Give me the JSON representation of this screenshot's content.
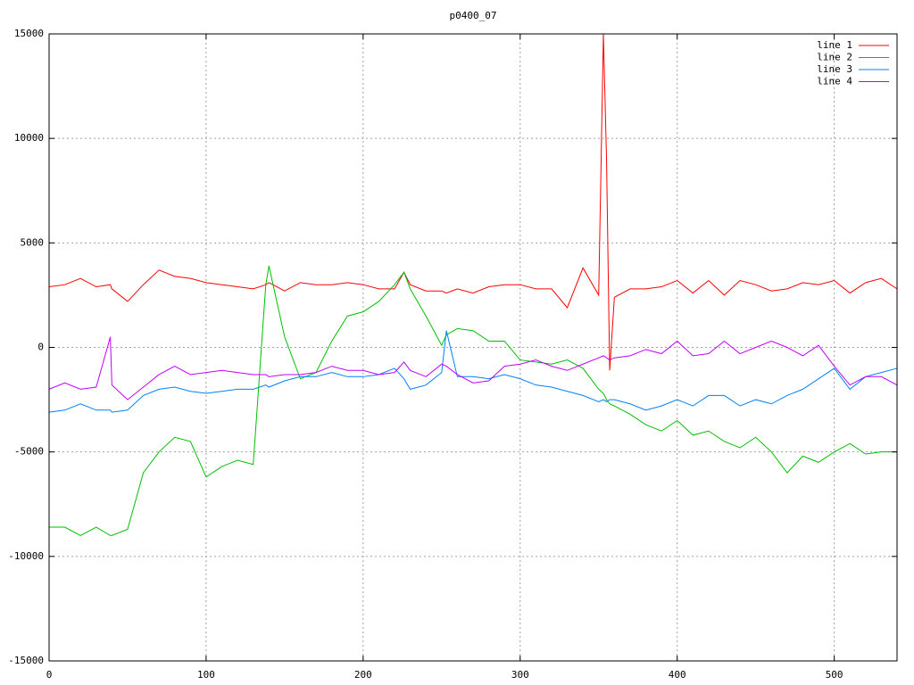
{
  "chart_data": {
    "type": "line",
    "title": "p0400_07",
    "x": [
      0,
      10,
      20,
      30,
      39,
      40,
      50,
      60,
      70,
      80,
      90,
      100,
      110,
      120,
      130,
      138,
      140,
      150,
      160,
      170,
      180,
      190,
      200,
      210,
      220,
      226,
      230,
      240,
      250,
      253,
      260,
      270,
      280,
      290,
      300,
      310,
      320,
      330,
      340,
      350,
      353,
      355,
      357,
      360,
      370,
      380,
      390,
      400,
      410,
      420,
      430,
      440,
      450,
      460,
      470,
      480,
      490,
      500,
      510,
      520,
      530,
      540
    ],
    "series": [
      {
        "name": "line 1",
        "color": "#ff0000",
        "values": [
          2900,
          3000,
          3300,
          2900,
          3000,
          2800,
          2200,
          3000,
          3700,
          3400,
          3300,
          3100,
          3000,
          2900,
          2800,
          3000,
          3100,
          2700,
          3100,
          3000,
          3000,
          3100,
          3000,
          2800,
          2800,
          3600,
          3000,
          2700,
          2700,
          2600,
          2800,
          2600,
          2900,
          3000,
          3000,
          2800,
          2800,
          1900,
          3800,
          2500,
          15000,
          9000,
          -1100,
          2400,
          2800,
          2800,
          2900,
          3200,
          2600,
          3200,
          2500,
          3200,
          3000,
          2700,
          2800,
          3100,
          3000,
          3200,
          2600,
          3100,
          3300,
          2800
        ]
      },
      {
        "name": "line 2",
        "color": "#00c000",
        "values": [
          -8600,
          -8600,
          -9000,
          -8600,
          -9000,
          -9000,
          -8700,
          -6000,
          -5000,
          -4300,
          -4500,
          -6200,
          -5700,
          -5400,
          -5600,
          3000,
          3900,
          500,
          -1500,
          -1200,
          300,
          1500,
          1700,
          2200,
          3000,
          3600,
          2800,
          1500,
          100,
          600,
          900,
          800,
          300,
          300,
          -600,
          -700,
          -800,
          -600,
          -1000,
          -2000,
          -2200,
          -2500,
          -2700,
          -2800,
          -3200,
          -3700,
          -4000,
          -3500,
          -4200,
          -4000,
          -4500,
          -4800,
          -4300,
          -5000,
          -6000,
          -5200,
          -5500,
          -5000,
          -4600,
          -5100,
          -5000,
          -5000
        ]
      },
      {
        "name": "line 3",
        "color": "#0080ff",
        "values": [
          -3100,
          -3000,
          -2700,
          -3000,
          -3000,
          -3100,
          -3000,
          -2300,
          -2000,
          -1900,
          -2100,
          -2200,
          -2100,
          -2000,
          -2000,
          -1800,
          -1900,
          -1600,
          -1400,
          -1400,
          -1200,
          -1400,
          -1400,
          -1300,
          -1000,
          -1500,
          -2000,
          -1800,
          -1200,
          800,
          -1400,
          -1400,
          -1500,
          -1300,
          -1500,
          -1800,
          -1900,
          -2100,
          -2300,
          -2600,
          -2500,
          -2600,
          -2500,
          -2500,
          -2700,
          -3000,
          -2800,
          -2500,
          -2800,
          -2300,
          -2300,
          -2800,
          -2500,
          -2700,
          -2300,
          -2000,
          -1500,
          -1000,
          -2000,
          -1400,
          -1200,
          -1000
        ]
      },
      {
        "name": "line 4",
        "color": "#c000ff",
        "values": [
          -2000,
          -1700,
          -2000,
          -1900,
          500,
          -1800,
          -2500,
          -1900,
          -1300,
          -900,
          -1300,
          -1200,
          -1100,
          -1200,
          -1300,
          -1300,
          -1400,
          -1300,
          -1300,
          -1200,
          -900,
          -1100,
          -1100,
          -1300,
          -1200,
          -700,
          -1100,
          -1400,
          -800,
          -900,
          -1300,
          -1700,
          -1600,
          -900,
          -800,
          -600,
          -900,
          -1100,
          -800,
          -500,
          -400,
          -500,
          -600,
          -500,
          -400,
          -100,
          -300,
          300,
          -400,
          -300,
          300,
          -300,
          0,
          300,
          0,
          -400,
          100,
          -900,
          -1800,
          -1400,
          -1400,
          -1800
        ]
      }
    ],
    "xlim": [
      0,
      540
    ],
    "xticks": [
      0,
      100,
      200,
      300,
      400,
      500
    ],
    "ylim": [
      -15000,
      15000
    ],
    "yticks": [
      -15000,
      -10000,
      -5000,
      0,
      5000,
      10000,
      15000
    ],
    "grid": true
  }
}
